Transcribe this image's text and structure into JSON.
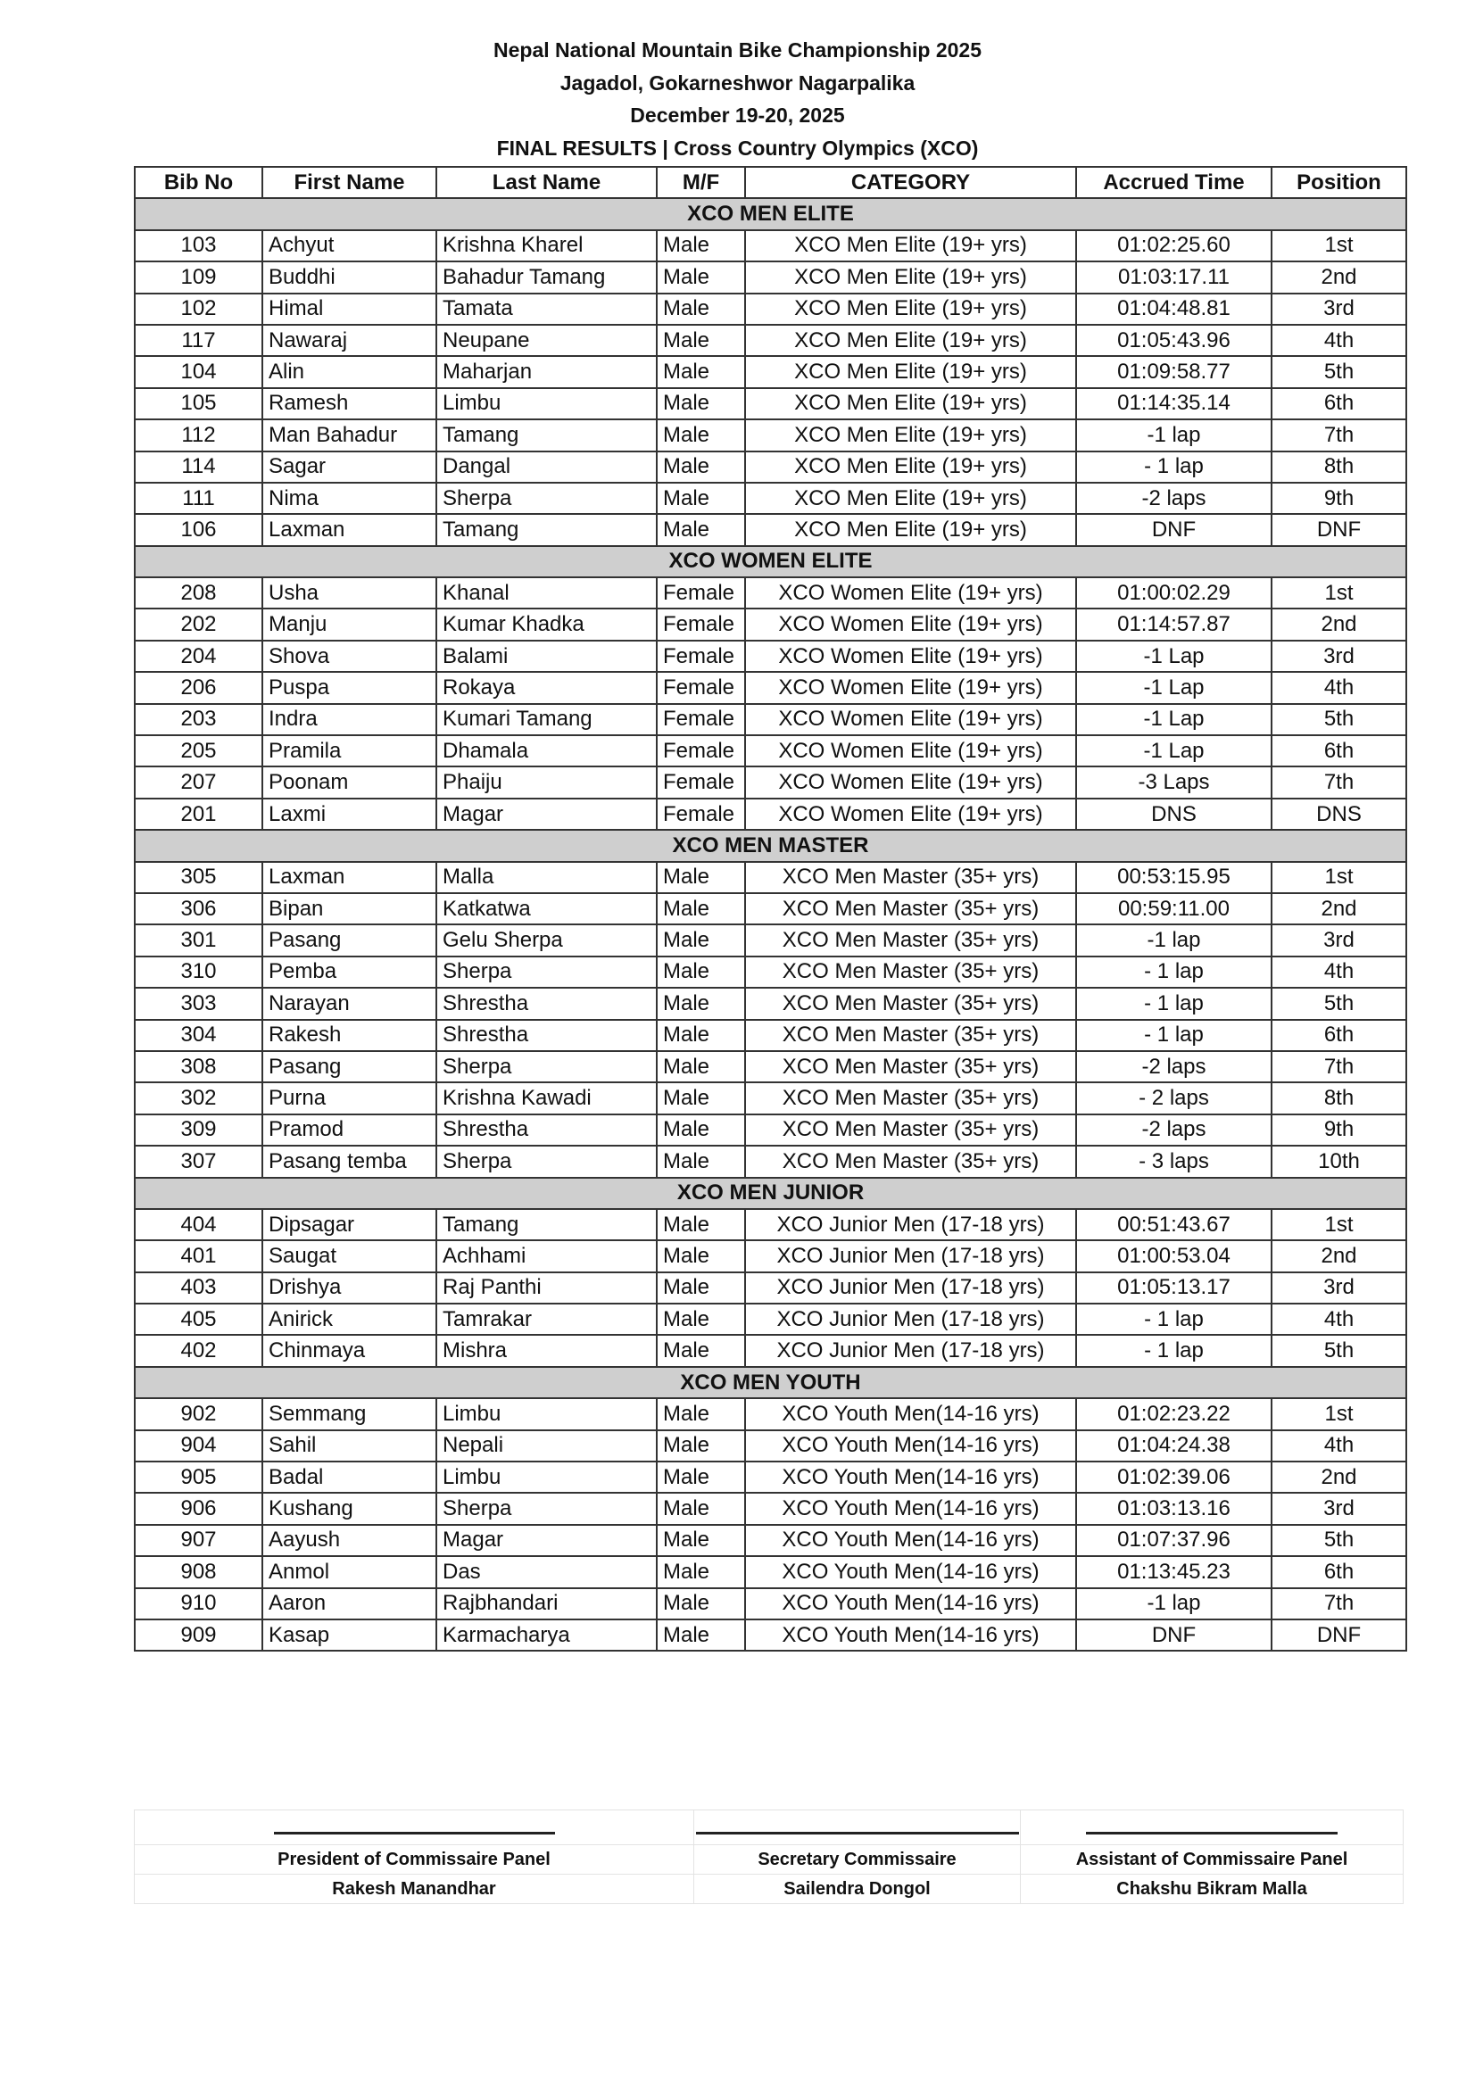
{
  "header": {
    "title": "Nepal National Mountain Bike Championship 2025",
    "venue": "Jagadol, Gokarneshwor Nagarpalika",
    "dates": "December 19-20, 2025",
    "subtitle": "FINAL RESULTS | Cross Country Olympics (XCO)"
  },
  "table": {
    "columns": [
      "Bib No",
      "First Name",
      "Last Name",
      "M/F",
      "CATEGORY",
      "Accrued Time",
      "Position"
    ],
    "groups": [
      {
        "name": "XCO MEN ELITE",
        "rows": [
          [
            "103",
            "Achyut",
            "Krishna Kharel",
            "Male",
            "XCO Men Elite (19+ yrs)",
            "01:02:25.60",
            "1st"
          ],
          [
            "109",
            "Buddhi",
            "Bahadur Tamang",
            "Male",
            "XCO Men Elite (19+ yrs)",
            "01:03:17.11",
            "2nd"
          ],
          [
            "102",
            "Himal",
            "Tamata",
            "Male",
            "XCO Men Elite (19+ yrs)",
            "01:04:48.81",
            "3rd"
          ],
          [
            "117",
            "Nawaraj",
            "Neupane",
            "Male",
            "XCO Men Elite (19+ yrs)",
            "01:05:43.96",
            "4th"
          ],
          [
            "104",
            "Alin",
            "Maharjan",
            "Male",
            "XCO Men Elite (19+ yrs)",
            "01:09:58.77",
            "5th"
          ],
          [
            "105",
            "Ramesh",
            "Limbu",
            "Male",
            "XCO Men Elite (19+ yrs)",
            "01:14:35.14",
            "6th"
          ],
          [
            "112",
            "Man Bahadur",
            "Tamang",
            "Male",
            "XCO Men Elite (19+ yrs)",
            "-1 lap",
            "7th"
          ],
          [
            "114",
            "Sagar",
            "Dangal",
            "Male",
            "XCO Men Elite (19+ yrs)",
            "- 1 lap",
            "8th"
          ],
          [
            "111",
            "Nima",
            "Sherpa",
            "Male",
            "XCO Men Elite (19+ yrs)",
            "-2 laps",
            "9th"
          ],
          [
            "106",
            "Laxman",
            "Tamang",
            "Male",
            "XCO Men Elite (19+ yrs)",
            "DNF",
            "DNF"
          ]
        ]
      },
      {
        "name": "XCO WOMEN ELITE",
        "rows": [
          [
            "208",
            "Usha",
            "Khanal",
            "Female",
            "XCO Women Elite (19+ yrs)",
            "01:00:02.29",
            "1st"
          ],
          [
            "202",
            "Manju",
            "Kumar Khadka",
            "Female",
            "XCO Women Elite (19+ yrs)",
            "01:14:57.87",
            "2nd"
          ],
          [
            "204",
            "Shova",
            "Balami",
            "Female",
            "XCO Women Elite (19+ yrs)",
            "-1 Lap",
            "3rd"
          ],
          [
            "206",
            "Puspa",
            "Rokaya",
            "Female",
            "XCO Women Elite (19+ yrs)",
            "-1 Lap",
            "4th"
          ],
          [
            "203",
            "Indra",
            "Kumari Tamang",
            "Female",
            "XCO Women Elite (19+ yrs)",
            "-1 Lap",
            "5th"
          ],
          [
            "205",
            "Pramila",
            "Dhamala",
            "Female",
            "XCO Women Elite (19+ yrs)",
            "-1 Lap",
            "6th"
          ],
          [
            "207",
            "Poonam",
            "Phaiju",
            "Female",
            "XCO Women Elite (19+ yrs)",
            "-3 Laps",
            "7th"
          ],
          [
            "201",
            "Laxmi",
            "Magar",
            "Female",
            "XCO Women Elite (19+ yrs)",
            "DNS",
            "DNS"
          ]
        ]
      },
      {
        "name": "XCO MEN MASTER",
        "rows": [
          [
            "305",
            "Laxman",
            "Malla",
            "Male",
            "XCO Men Master (35+ yrs)",
            "00:53:15.95",
            "1st"
          ],
          [
            "306",
            "Bipan",
            "Katkatwa",
            "Male",
            "XCO Men Master (35+ yrs)",
            "00:59:11.00",
            "2nd"
          ],
          [
            "301",
            "Pasang",
            "Gelu Sherpa",
            "Male",
            "XCO Men Master (35+ yrs)",
            "-1 lap",
            "3rd"
          ],
          [
            "310",
            "Pemba",
            "Sherpa",
            "Male",
            "XCO Men Master (35+ yrs)",
            "- 1 lap",
            "4th"
          ],
          [
            "303",
            "Narayan",
            "Shrestha",
            "Male",
            "XCO Men Master (35+ yrs)",
            "- 1 lap",
            "5th"
          ],
          [
            "304",
            "Rakesh",
            "Shrestha",
            "Male",
            "XCO Men Master (35+ yrs)",
            "- 1 lap",
            "6th"
          ],
          [
            "308",
            "Pasang",
            "Sherpa",
            "Male",
            "XCO Men Master (35+ yrs)",
            "-2 laps",
            "7th"
          ],
          [
            "302",
            "Purna",
            "Krishna Kawadi",
            "Male",
            "XCO Men Master (35+ yrs)",
            "- 2 laps",
            "8th"
          ],
          [
            "309",
            "Pramod",
            "Shrestha",
            "Male",
            "XCO Men Master (35+ yrs)",
            "-2 laps",
            "9th"
          ],
          [
            "307",
            "Pasang temba",
            "Sherpa",
            "Male",
            "XCO Men Master (35+ yrs)",
            "- 3 laps",
            "10th"
          ]
        ]
      },
      {
        "name": "XCO MEN JUNIOR",
        "rows": [
          [
            "404",
            "Dipsagar",
            "Tamang",
            "Male",
            "XCO Junior Men (17-18 yrs)",
            "00:51:43.67",
            "1st"
          ],
          [
            "401",
            "Saugat",
            "Achhami",
            "Male",
            "XCO Junior Men (17-18 yrs)",
            "01:00:53.04",
            "2nd"
          ],
          [
            "403",
            "Drishya",
            "Raj Panthi",
            "Male",
            "XCO Junior Men (17-18 yrs)",
            "01:05:13.17",
            "3rd"
          ],
          [
            "405",
            "Anirick",
            "Tamrakar",
            "Male",
            "XCO Junior Men (17-18 yrs)",
            "- 1 lap",
            "4th"
          ],
          [
            "402",
            "Chinmaya",
            "Mishra",
            "Male",
            "XCO Junior Men (17-18 yrs)",
            "- 1 lap",
            "5th"
          ]
        ]
      },
      {
        "name": "XCO MEN YOUTH",
        "rows": [
          [
            "902",
            "Semmang",
            "Limbu",
            "Male",
            "XCO Youth Men(14-16 yrs)",
            "01:02:23.22",
            "1st"
          ],
          [
            "904",
            "Sahil",
            "Nepali",
            "Male",
            "XCO Youth Men(14-16 yrs)",
            "01:04:24.38",
            "4th"
          ],
          [
            "905",
            "Badal",
            "Limbu",
            "Male",
            "XCO Youth Men(14-16 yrs)",
            "01:02:39.06",
            "2nd"
          ],
          [
            "906",
            "Kushang",
            "Sherpa",
            "Male",
            "XCO Youth Men(14-16 yrs)",
            "01:03:13.16",
            "3rd"
          ],
          [
            "907",
            "Aayush",
            "Magar",
            "Male",
            "XCO Youth Men(14-16 yrs)",
            "01:07:37.96",
            "5th"
          ],
          [
            "908",
            "Anmol",
            "Das",
            "Male",
            "XCO Youth Men(14-16 yrs)",
            "01:13:45.23",
            "6th"
          ],
          [
            "910",
            "Aaron",
            "Rajbhandari",
            "Male",
            "XCO Youth Men(14-16 yrs)",
            "-1 lap",
            "7th"
          ],
          [
            "909",
            "Kasap",
            "Karmacharya",
            "Male",
            "XCO Youth Men(14-16 yrs)",
            "DNF",
            "DNF"
          ]
        ]
      }
    ]
  },
  "signatures": [
    {
      "role": "President of Commissaire Panel",
      "name": "Rakesh Manandhar"
    },
    {
      "role": "Secretary Commissaire",
      "name": "Sailendra Dongol"
    },
    {
      "role": "Assistant of Commissaire Panel",
      "name": "Chakshu Bikram Malla"
    }
  ]
}
